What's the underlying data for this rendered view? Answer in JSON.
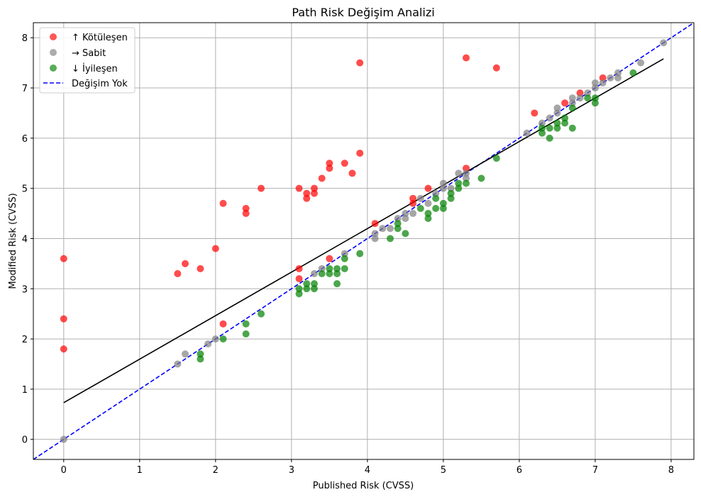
{
  "chart_data": {
    "type": "scatter",
    "title": "Path Risk Değişim Analizi",
    "xlabel": "Published Risk (CVSS)",
    "ylabel": "Modified Risk (CVSS)",
    "xlim": [
      -0.4,
      8.3
    ],
    "ylim": [
      -0.4,
      8.3
    ],
    "x_ticks": [
      0,
      1,
      2,
      3,
      4,
      5,
      6,
      7,
      8
    ],
    "y_ticks": [
      0,
      1,
      2,
      3,
      4,
      5,
      6,
      7,
      8
    ],
    "grid": true,
    "legend_position": "top-left",
    "series": [
      {
        "name": "↑ Kötüleşen",
        "color": "#ff0000",
        "points": [
          [
            0,
            3.6
          ],
          [
            0,
            2.4
          ],
          [
            0,
            1.8
          ],
          [
            1.5,
            3.3
          ],
          [
            1.6,
            3.5
          ],
          [
            1.8,
            3.4
          ],
          [
            2.0,
            3.8
          ],
          [
            2.1,
            4.7
          ],
          [
            2.1,
            2.3
          ],
          [
            2.4,
            4.6
          ],
          [
            2.4,
            4.5
          ],
          [
            2.6,
            5.0
          ],
          [
            3.1,
            5.0
          ],
          [
            3.1,
            3.4
          ],
          [
            3.1,
            3.2
          ],
          [
            3.2,
            4.9
          ],
          [
            3.2,
            4.8
          ],
          [
            3.3,
            5.0
          ],
          [
            3.3,
            4.9
          ],
          [
            3.4,
            5.2
          ],
          [
            3.5,
            5.5
          ],
          [
            3.5,
            5.4
          ],
          [
            3.5,
            3.6
          ],
          [
            3.7,
            5.5
          ],
          [
            3.8,
            5.3
          ],
          [
            3.9,
            7.5
          ],
          [
            3.9,
            5.7
          ],
          [
            4.1,
            4.3
          ],
          [
            4.6,
            4.8
          ],
          [
            4.6,
            4.7
          ],
          [
            4.8,
            5.0
          ],
          [
            5.3,
            7.6
          ],
          [
            5.3,
            5.4
          ],
          [
            5.7,
            7.4
          ],
          [
            6.2,
            6.5
          ],
          [
            6.6,
            6.7
          ],
          [
            6.8,
            6.9
          ],
          [
            7.1,
            7.2
          ]
        ]
      },
      {
        "name": "→ Sabit",
        "color": "#808080",
        "points": [
          [
            0,
            0
          ],
          [
            1.5,
            1.5
          ],
          [
            1.6,
            1.7
          ],
          [
            1.9,
            1.9
          ],
          [
            2.0,
            2.0
          ],
          [
            3.3,
            3.3
          ],
          [
            3.4,
            3.4
          ],
          [
            3.7,
            3.7
          ],
          [
            4.1,
            4.1
          ],
          [
            4.1,
            4.0
          ],
          [
            4.2,
            4.2
          ],
          [
            4.3,
            4.2
          ],
          [
            4.4,
            4.4
          ],
          [
            4.5,
            4.5
          ],
          [
            4.5,
            4.4
          ],
          [
            4.6,
            4.5
          ],
          [
            4.7,
            4.8
          ],
          [
            4.8,
            4.7
          ],
          [
            4.9,
            4.9
          ],
          [
            5.0,
            5.1
          ],
          [
            5.0,
            5.0
          ],
          [
            5.1,
            5.0
          ],
          [
            5.2,
            5.3
          ],
          [
            5.3,
            5.3
          ],
          [
            5.3,
            5.2
          ],
          [
            6.1,
            6.1
          ],
          [
            6.3,
            6.3
          ],
          [
            6.4,
            6.4
          ],
          [
            6.5,
            6.6
          ],
          [
            6.5,
            6.5
          ],
          [
            6.7,
            6.8
          ],
          [
            6.7,
            6.7
          ],
          [
            6.8,
            6.8
          ],
          [
            6.9,
            6.9
          ],
          [
            7.0,
            7.1
          ],
          [
            7.0,
            7.0
          ],
          [
            7.1,
            7.1
          ],
          [
            7.2,
            7.2
          ],
          [
            7.3,
            7.3
          ],
          [
            7.3,
            7.2
          ],
          [
            7.6,
            7.5
          ],
          [
            7.9,
            7.9
          ]
        ]
      },
      {
        "name": "↓ İyileşen",
        "color": "#008000",
        "points": [
          [
            1.8,
            1.7
          ],
          [
            1.8,
            1.6
          ],
          [
            2.1,
            2.0
          ],
          [
            2.4,
            2.3
          ],
          [
            2.4,
            2.1
          ],
          [
            2.6,
            2.5
          ],
          [
            3.1,
            3.0
          ],
          [
            3.1,
            2.9
          ],
          [
            3.2,
            3.1
          ],
          [
            3.2,
            3.0
          ],
          [
            3.3,
            3.1
          ],
          [
            3.3,
            3.0
          ],
          [
            3.4,
            3.3
          ],
          [
            3.5,
            3.4
          ],
          [
            3.5,
            3.3
          ],
          [
            3.6,
            3.4
          ],
          [
            3.6,
            3.3
          ],
          [
            3.6,
            3.1
          ],
          [
            3.7,
            3.6
          ],
          [
            3.7,
            3.4
          ],
          [
            3.9,
            3.7
          ],
          [
            4.3,
            4.0
          ],
          [
            4.4,
            4.3
          ],
          [
            4.4,
            4.2
          ],
          [
            4.5,
            4.1
          ],
          [
            4.7,
            4.6
          ],
          [
            4.8,
            4.5
          ],
          [
            4.8,
            4.4
          ],
          [
            4.9,
            4.8
          ],
          [
            4.9,
            4.6
          ],
          [
            5.0,
            4.7
          ],
          [
            5.0,
            4.6
          ],
          [
            5.1,
            4.9
          ],
          [
            5.1,
            4.8
          ],
          [
            5.2,
            5.1
          ],
          [
            5.2,
            5.0
          ],
          [
            5.3,
            5.1
          ],
          [
            5.5,
            5.2
          ],
          [
            5.7,
            5.6
          ],
          [
            6.3,
            6.2
          ],
          [
            6.3,
            6.1
          ],
          [
            6.4,
            6.2
          ],
          [
            6.4,
            6.0
          ],
          [
            6.5,
            6.3
          ],
          [
            6.5,
            6.2
          ],
          [
            6.6,
            6.4
          ],
          [
            6.6,
            6.3
          ],
          [
            6.7,
            6.6
          ],
          [
            6.7,
            6.2
          ],
          [
            6.9,
            6.8
          ],
          [
            7.0,
            6.8
          ],
          [
            7.0,
            6.7
          ],
          [
            7.5,
            7.3
          ]
        ]
      }
    ],
    "reference_line": {
      "name": "Değişim Yok",
      "color": "#0000ff",
      "style": "dashed",
      "from": [
        -0.4,
        -0.4
      ],
      "to": [
        8.3,
        8.3
      ]
    },
    "trend_line": {
      "color": "#000000",
      "from": [
        0,
        0.73
      ],
      "to": [
        7.9,
        7.58
      ]
    }
  }
}
